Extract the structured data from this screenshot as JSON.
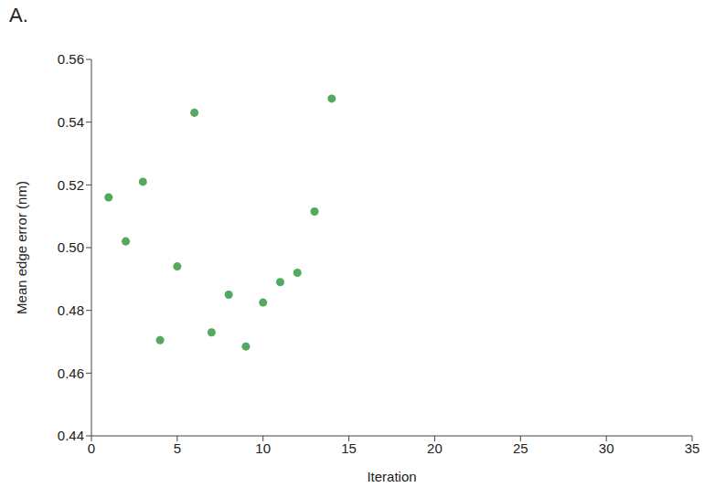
{
  "panel_label": "A.",
  "chart_data": {
    "type": "scatter",
    "x_label": "Iteration",
    "y_label": "Mean edge error (nm)",
    "x": [
      1,
      2,
      3,
      4,
      5,
      6,
      7,
      8,
      9,
      10,
      11,
      12,
      13,
      14
    ],
    "values": [
      0.516,
      0.502,
      0.521,
      0.4705,
      0.494,
      0.543,
      0.473,
      0.485,
      0.4685,
      0.4825,
      0.489,
      0.492,
      0.5115,
      0.5475
    ],
    "color": "#54a860",
    "marker": "circle",
    "xlim": [
      0,
      35
    ],
    "xticks": [
      0,
      5,
      10,
      15,
      20,
      25,
      30,
      35
    ],
    "ylim": [
      0.44,
      0.56
    ],
    "yticks": [
      0.44,
      0.46,
      0.48,
      {
        "value": 0.5,
        "label": "0.50"
      },
      0.52,
      0.54,
      0.56
    ],
    "grid": false
  }
}
